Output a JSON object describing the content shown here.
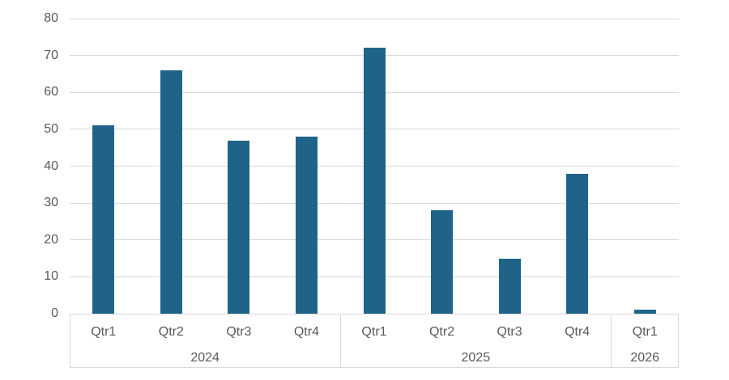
{
  "chart_data": {
    "type": "bar",
    "title": "",
    "xlabel": "",
    "ylabel": "",
    "ylim": [
      0,
      80
    ],
    "y_ticks": [
      0,
      10,
      20,
      30,
      40,
      50,
      60,
      70,
      80
    ],
    "grid": true,
    "legend": "none",
    "groups": [
      {
        "label": "2024",
        "categories": [
          "Qtr1",
          "Qtr2",
          "Qtr3",
          "Qtr4"
        ],
        "values": [
          51,
          66,
          47,
          48
        ]
      },
      {
        "label": "2025",
        "categories": [
          "Qtr1",
          "Qtr2",
          "Qtr3",
          "Qtr4"
        ],
        "values": [
          72,
          28,
          15,
          38
        ]
      },
      {
        "label": "2026",
        "categories": [
          "Qtr1"
        ],
        "values": [
          1
        ]
      }
    ],
    "categories_flat": [
      "Qtr1",
      "Qtr2",
      "Qtr3",
      "Qtr4",
      "Qtr1",
      "Qtr2",
      "Qtr3",
      "Qtr4",
      "Qtr1"
    ],
    "values_flat": [
      51,
      66,
      47,
      48,
      72,
      28,
      15,
      38,
      1
    ],
    "colors": {
      "bar": "#1f6488",
      "gridline": "#d9d9d9",
      "axis_line": "#d9d9d9",
      "axis_text": "#595959"
    }
  }
}
